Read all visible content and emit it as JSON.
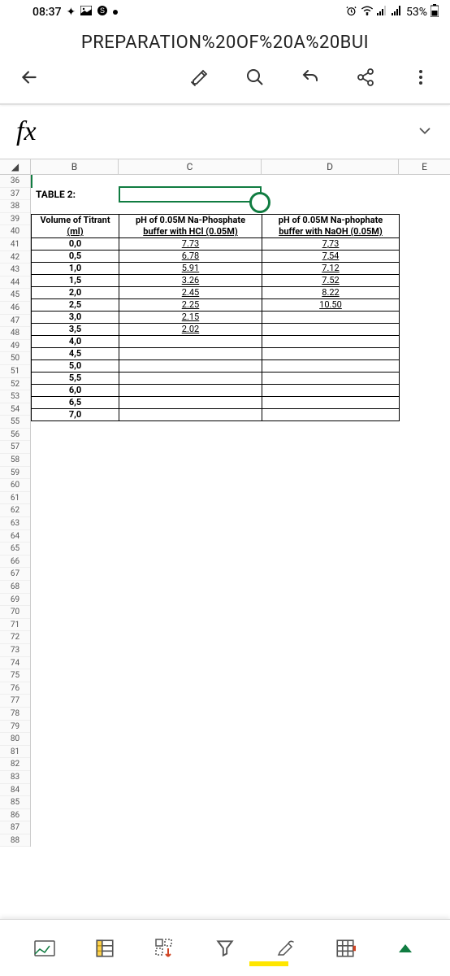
{
  "status": {
    "time": "08:37",
    "battery": "53%"
  },
  "title": "PREPARATION%20OF%20A%20BUI",
  "fx": "fx",
  "columns": {
    "corner": "◢",
    "b": "B",
    "c": "C",
    "d": "D",
    "e": "E"
  },
  "table_label": "TABLE 2:",
  "row_start": 36,
  "row_end": 88,
  "headers": {
    "b1": "Volume of Titrant",
    "b2": "(ml)",
    "c1": "pH of 0.05M Na-Phosphate",
    "c2": "buffer with HCl (0.05M)",
    "d1": "pH of 0.05M Na-phophate",
    "d2": "buffer with NaOH (0.05M)"
  },
  "rows": [
    {
      "b": "0,0",
      "c": "7.73",
      "d": "7,73"
    },
    {
      "b": "0,5",
      "c": "6.78",
      "d": "7,54"
    },
    {
      "b": "1,0",
      "c": "5.91",
      "d": "7.12"
    },
    {
      "b": "1,5",
      "c": "3.26",
      "d": "7.52"
    },
    {
      "b": "2,0",
      "c": "2.45",
      "d": "8.22"
    },
    {
      "b": "2,5",
      "c": "2.25",
      "d": "10.50"
    },
    {
      "b": "3,0",
      "c": "2.15",
      "d": ""
    },
    {
      "b": "3,5",
      "c": "2.02",
      "d": ""
    },
    {
      "b": "4,0",
      "c": "",
      "d": ""
    },
    {
      "b": "4,5",
      "c": "",
      "d": ""
    },
    {
      "b": "5,0",
      "c": "",
      "d": ""
    },
    {
      "b": "5,5",
      "c": "",
      "d": ""
    },
    {
      "b": "6,0",
      "c": "",
      "d": ""
    },
    {
      "b": "6,5",
      "c": "",
      "d": ""
    },
    {
      "b": "7,0",
      "c": "",
      "d": ""
    }
  ],
  "colors": {
    "accent": "#107c41",
    "highlight": "#ffe600"
  }
}
